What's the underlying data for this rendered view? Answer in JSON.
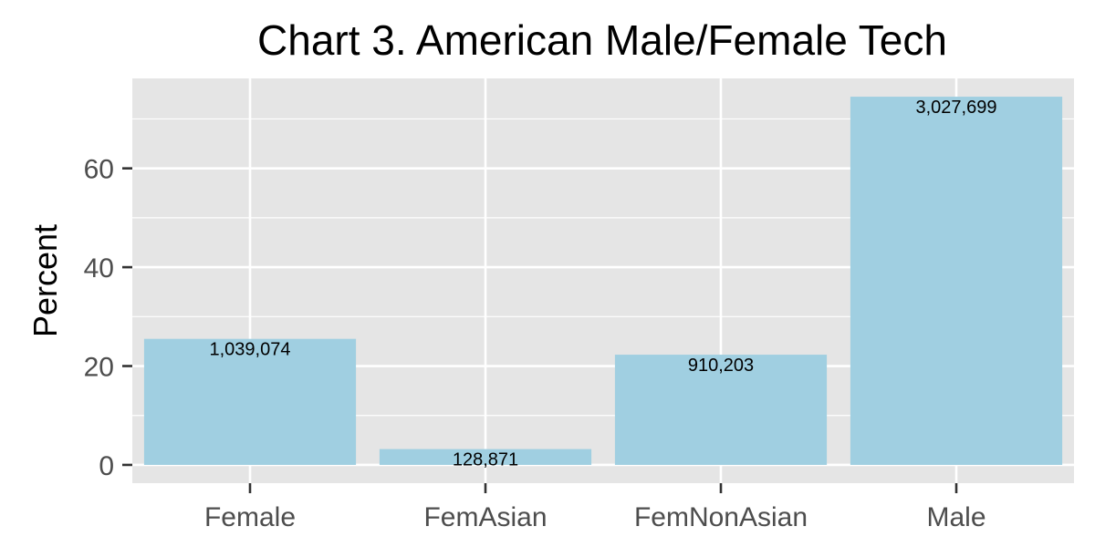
{
  "chart_data": {
    "type": "bar",
    "title": "Chart 3. American Male/Female Tech",
    "xlabel": "",
    "ylabel": "Percent",
    "categories": [
      "Female",
      "FemAsian",
      "FemNonAsian",
      "Male"
    ],
    "values": [
      25.5,
      3.2,
      22.3,
      74.5
    ],
    "data_labels": [
      "1,039,074",
      "128,871",
      "910,203",
      "3,027,699"
    ],
    "ylim": [
      -3.7,
      78.2
    ],
    "yticks": [
      0,
      20,
      40,
      60
    ],
    "ytick_labels": [
      "0",
      "20",
      "40",
      "60"
    ],
    "grid": true,
    "legend": "none",
    "colors": {
      "bar": "#a0cfe1",
      "panel": "#e5e5e5",
      "grid": "#ffffff",
      "tick": "#333333"
    }
  }
}
